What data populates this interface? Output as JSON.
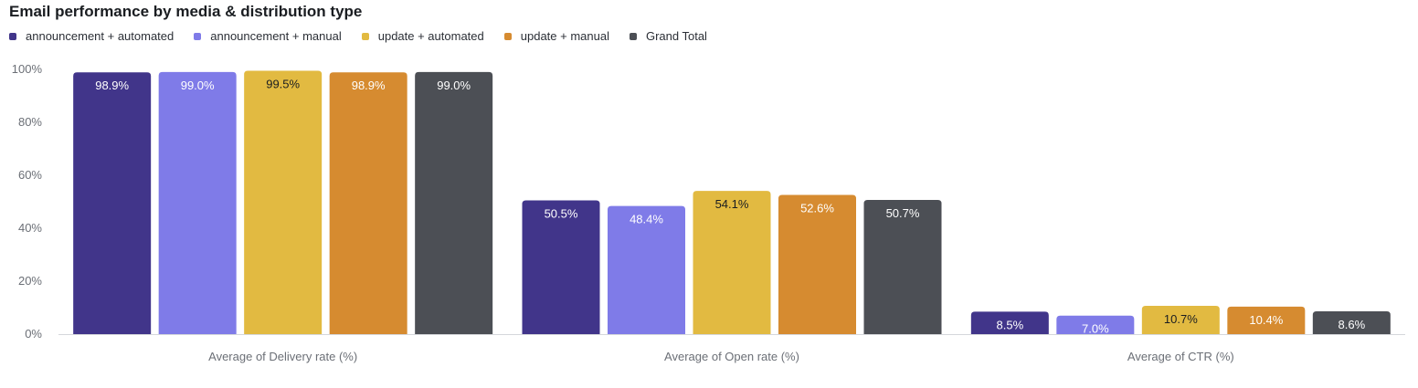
{
  "chart_data": {
    "type": "bar",
    "title": "Email performance by media & distribution type",
    "categories": [
      "Average of Delivery rate (%)",
      "Average of Open rate (%)",
      "Average of CTR (%)"
    ],
    "series": [
      {
        "name": "announcement + automated",
        "values": [
          98.9,
          50.5,
          8.5
        ],
        "labels": [
          "98.9%",
          "50.5%",
          "8.5%"
        ],
        "color": "#41358a",
        "label_color": "#ffffff"
      },
      {
        "name": "announcement + manual",
        "values": [
          99.0,
          48.4,
          7.0
        ],
        "labels": [
          "99.0%",
          "48.4%",
          "7.0%"
        ],
        "color": "#7f7be8",
        "label_color": "#ffffff"
      },
      {
        "name": "update + automated",
        "values": [
          99.5,
          54.1,
          10.7
        ],
        "labels": [
          "99.5%",
          "54.1%",
          "10.7%"
        ],
        "color": "#e2ba41",
        "label_color": "#1a1d21"
      },
      {
        "name": "update + manual",
        "values": [
          98.9,
          52.6,
          10.4
        ],
        "labels": [
          "98.9%",
          "52.6%",
          "10.4%"
        ],
        "color": "#d68b30",
        "label_color": "#ffffff"
      },
      {
        "name": "Grand Total",
        "values": [
          99.0,
          50.7,
          8.6
        ],
        "labels": [
          "99.0%",
          "50.7%",
          "8.6%"
        ],
        "color": "#4c4f55",
        "label_color": "#ffffff"
      }
    ],
    "yticks": [
      "0%",
      "20%",
      "40%",
      "60%",
      "80%",
      "100%"
    ],
    "ylim": [
      0,
      100
    ],
    "legend_position": "top-left",
    "grid": false
  }
}
